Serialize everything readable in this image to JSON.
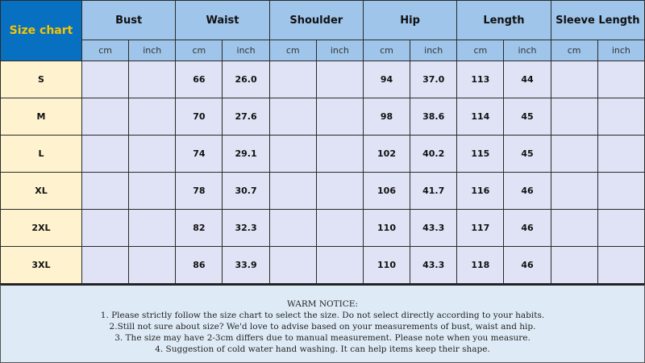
{
  "corner_label": "Size chart",
  "groups": [
    "Bust",
    "Waist",
    "Shoulder",
    "Hip",
    "Length",
    "Sleeve Length"
  ],
  "units": [
    "cm",
    "inch"
  ],
  "rows": [
    {
      "size": "S",
      "values": [
        "",
        "",
        "66",
        "26.0",
        "",
        "",
        "94",
        "37.0",
        "113",
        "44",
        "",
        ""
      ]
    },
    {
      "size": "M",
      "values": [
        "",
        "",
        "70",
        "27.6",
        "",
        "",
        "98",
        "38.6",
        "114",
        "45",
        "",
        ""
      ]
    },
    {
      "size": "L",
      "values": [
        "",
        "",
        "74",
        "29.1",
        "",
        "",
        "102",
        "40.2",
        "115",
        "45",
        "",
        ""
      ]
    },
    {
      "size": "XL",
      "values": [
        "",
        "",
        "78",
        "30.7",
        "",
        "",
        "106",
        "41.7",
        "116",
        "46",
        "",
        ""
      ]
    },
    {
      "size": "2XL",
      "values": [
        "",
        "",
        "82",
        "32.3",
        "",
        "",
        "110",
        "43.3",
        "117",
        "46",
        "",
        ""
      ]
    },
    {
      "size": "3XL",
      "values": [
        "",
        "",
        "86",
        "33.9",
        "",
        "",
        "110",
        "43.3",
        "118",
        "46",
        "",
        ""
      ]
    }
  ],
  "notice": {
    "title": "WARM NOTICE:",
    "lines": [
      "1. Please strictly follow the size chart to select the size. Do not select directly according to your habits.",
      "2.Still not sure about size? We'd love to advise based on your measurements of bust, waist and hip.",
      "3. The size may have 2-3cm differs due to manual measurement. Please note when you measure.",
      "4. Suggestion of cold water hand washing. It can help items keep their shape."
    ]
  },
  "colors": {
    "corner_bg": "#0870c0",
    "corner_text": "#f5c400",
    "header_bg": "#9fc5ea",
    "size_bg": "#fff3cf",
    "cell_bg": "#dfe3f5",
    "notice_bg": "#deebf7"
  }
}
